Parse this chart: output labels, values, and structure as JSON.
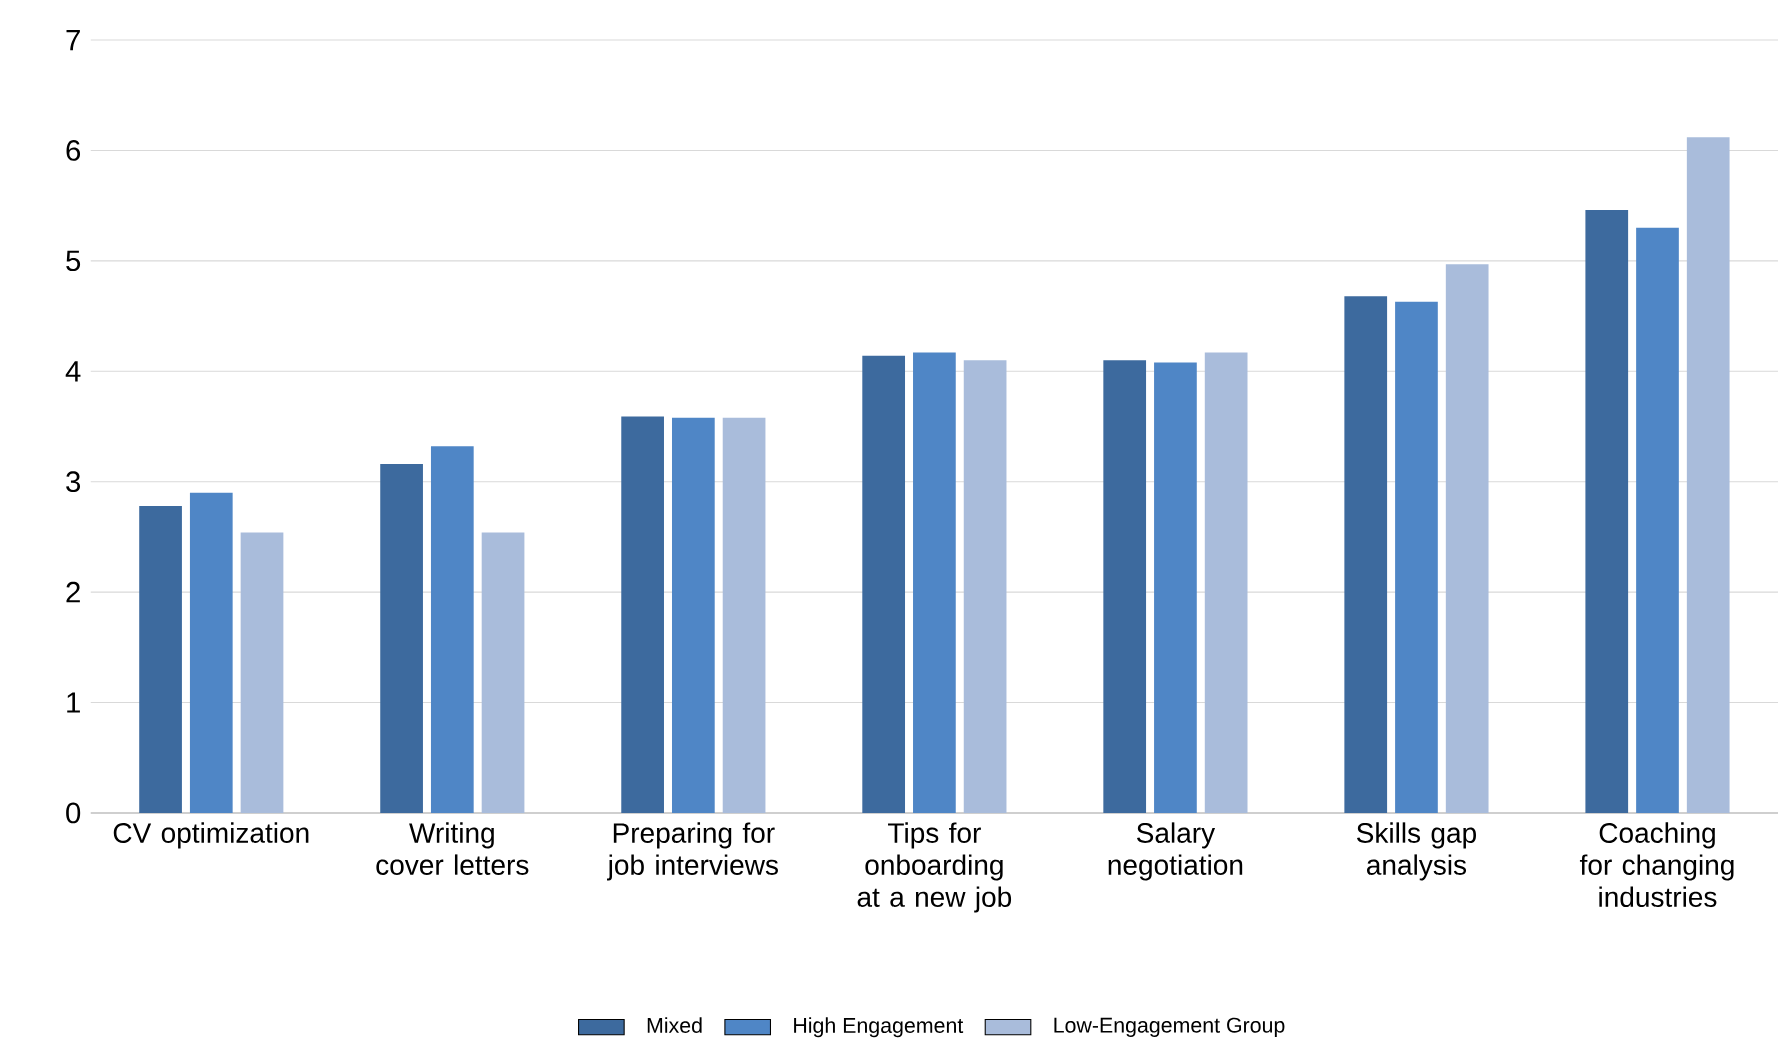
{
  "chart_data": {
    "type": "bar",
    "categories": [
      "CV optimization",
      "Writing cover letters",
      "Preparing for job interviews",
      "Tips for onboarding at a new job",
      "Salary negotiation",
      "Skills gap analysis",
      "Coaching for changing industries"
    ],
    "series": [
      {
        "name": "Mixed",
        "color": "#3d6a9e",
        "values": [
          2.78,
          3.16,
          3.59,
          4.14,
          4.1,
          4.68,
          5.46
        ]
      },
      {
        "name": "High Engagement",
        "color": "#4f86c6",
        "values": [
          2.9,
          3.32,
          3.58,
          4.17,
          4.08,
          4.63,
          5.3
        ]
      },
      {
        "name": "Low-Engagement Group",
        "color": "#a9bcdb",
        "values": [
          2.54,
          2.54,
          3.58,
          4.1,
          4.17,
          4.97,
          6.12
        ]
      }
    ],
    "ylim": [
      0,
      7
    ],
    "yticks": [
      0,
      1,
      2,
      3,
      4,
      5,
      6,
      7
    ],
    "grid": "y",
    "legend": "bottom"
  }
}
